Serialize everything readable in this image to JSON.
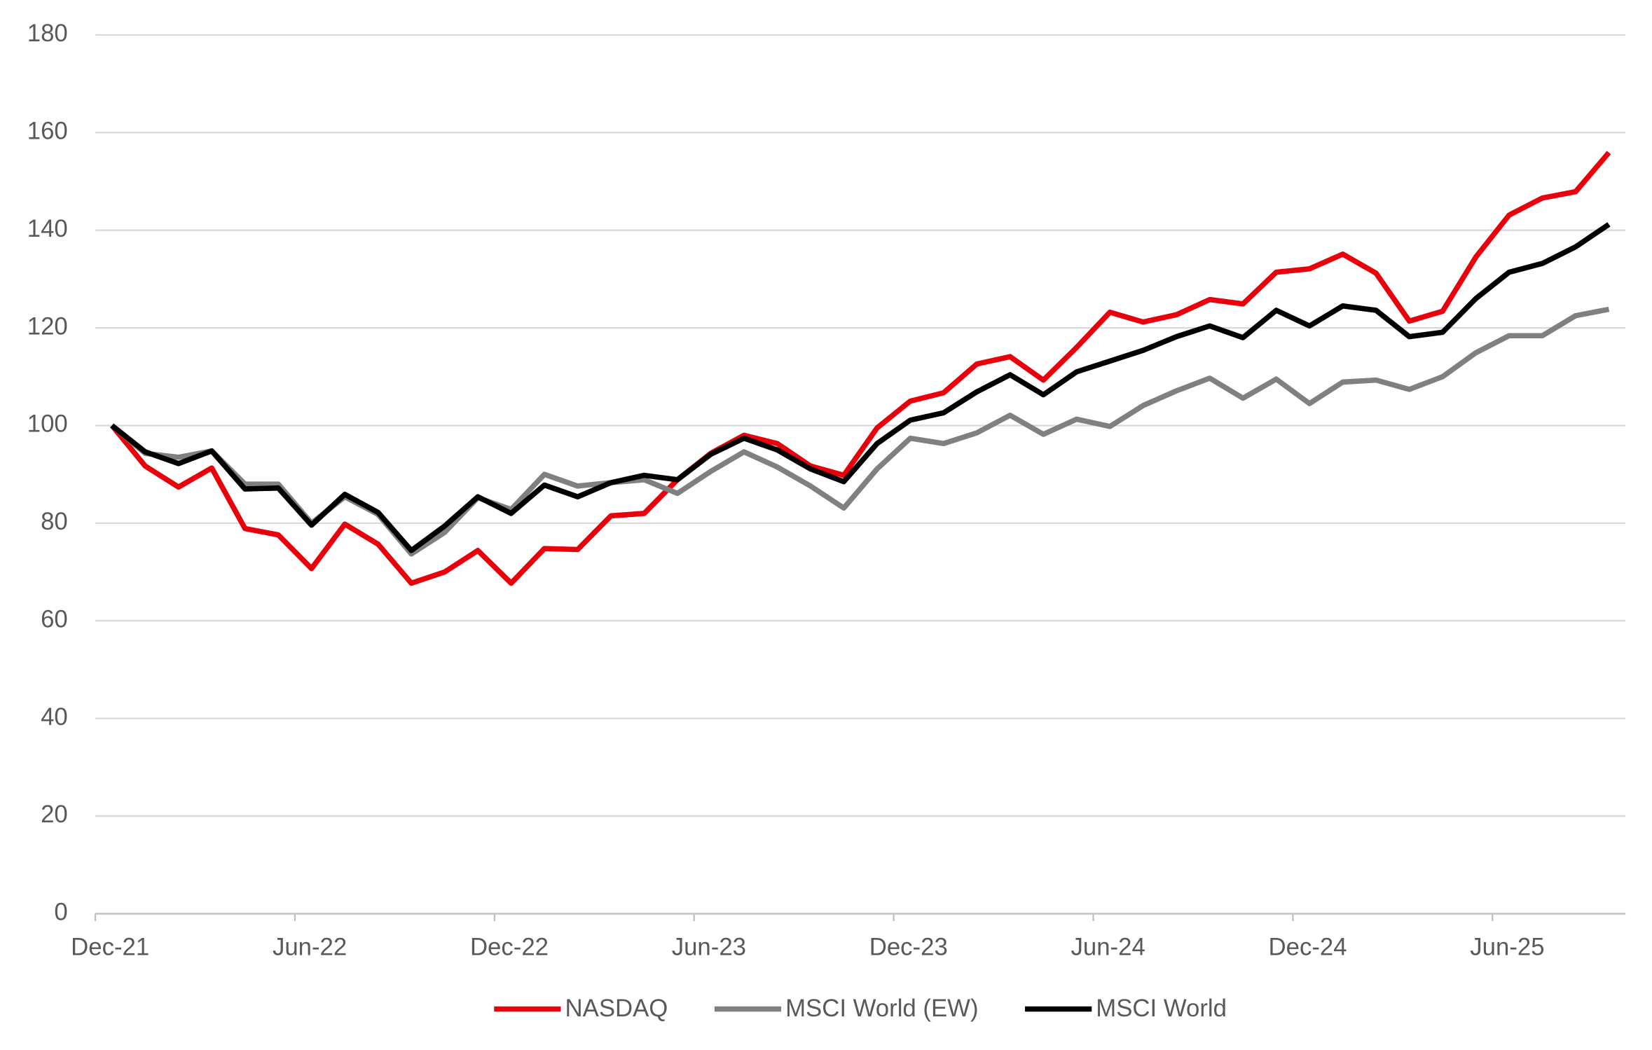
{
  "chart_data": {
    "type": "line",
    "categories": [
      "Dec-21",
      null,
      null,
      null,
      null,
      null,
      "Jun-22",
      null,
      null,
      null,
      null,
      null,
      "Dec-22",
      null,
      null,
      null,
      null,
      null,
      "Jun-23",
      null,
      null,
      null,
      null,
      null,
      "Dec-23",
      null,
      null,
      null,
      null,
      null,
      "Jun-24",
      null,
      null,
      null,
      null,
      null,
      "Dec-24",
      null,
      null,
      null,
      null,
      null,
      "Jun-25",
      null,
      null,
      null
    ],
    "series": [
      {
        "name": "NASDAQ",
        "color": "#e8000b",
        "values": [
          100,
          91.7,
          87.4,
          91.3,
          78.9,
          77.6,
          70.7,
          79.8,
          75.7,
          67.7,
          70.0,
          74.4,
          67.7,
          74.8,
          74.6,
          81.5,
          82.0,
          88.9,
          94.3,
          98.0,
          96.3,
          91.7,
          89.8,
          99.5,
          105.0,
          106.7,
          112.6,
          114.1,
          109.3,
          116.0,
          123.2,
          121.2,
          122.7,
          125.8,
          124.9,
          131.4,
          132.1,
          135.1,
          131.2,
          121.4,
          123.4,
          134.5,
          143.1,
          146.6,
          147.9,
          155.9
        ]
      },
      {
        "name": "MSCI World (EW)",
        "color": "#808080",
        "values": [
          100,
          94.3,
          93.5,
          94.8,
          88.0,
          88.0,
          80.0,
          85.4,
          81.8,
          73.7,
          78.1,
          85.2,
          82.8,
          90.0,
          87.6,
          88.3,
          88.9,
          86.1,
          90.6,
          94.6,
          91.5,
          87.6,
          83.1,
          91.1,
          97.4,
          96.3,
          98.5,
          102.1,
          98.2,
          101.3,
          99.8,
          104.1,
          107.1,
          109.7,
          105.6,
          109.5,
          104.5,
          108.9,
          109.3,
          107.4,
          110.0,
          114.9,
          118.4,
          118.4,
          122.5,
          123.8
        ]
      },
      {
        "name": "MSCI World",
        "color": "#000000",
        "values": [
          100,
          94.6,
          92.2,
          94.8,
          87.0,
          87.2,
          79.6,
          85.9,
          82.2,
          74.4,
          79.4,
          85.4,
          82.0,
          87.8,
          85.4,
          88.3,
          89.8,
          88.9,
          94.1,
          97.4,
          95.0,
          91.1,
          88.5,
          96.3,
          101.1,
          102.6,
          106.9,
          110.4,
          106.3,
          111.0,
          113.2,
          115.4,
          118.2,
          120.4,
          118.0,
          123.6,
          120.4,
          124.5,
          123.6,
          118.2,
          119.1,
          126.0,
          131.4,
          133.2,
          136.6,
          141.2
        ]
      }
    ],
    "ylim": [
      0,
      180
    ],
    "yticks": [
      0,
      20,
      40,
      60,
      80,
      100,
      120,
      140,
      160,
      180
    ],
    "grid": true,
    "legend": "bottom"
  }
}
